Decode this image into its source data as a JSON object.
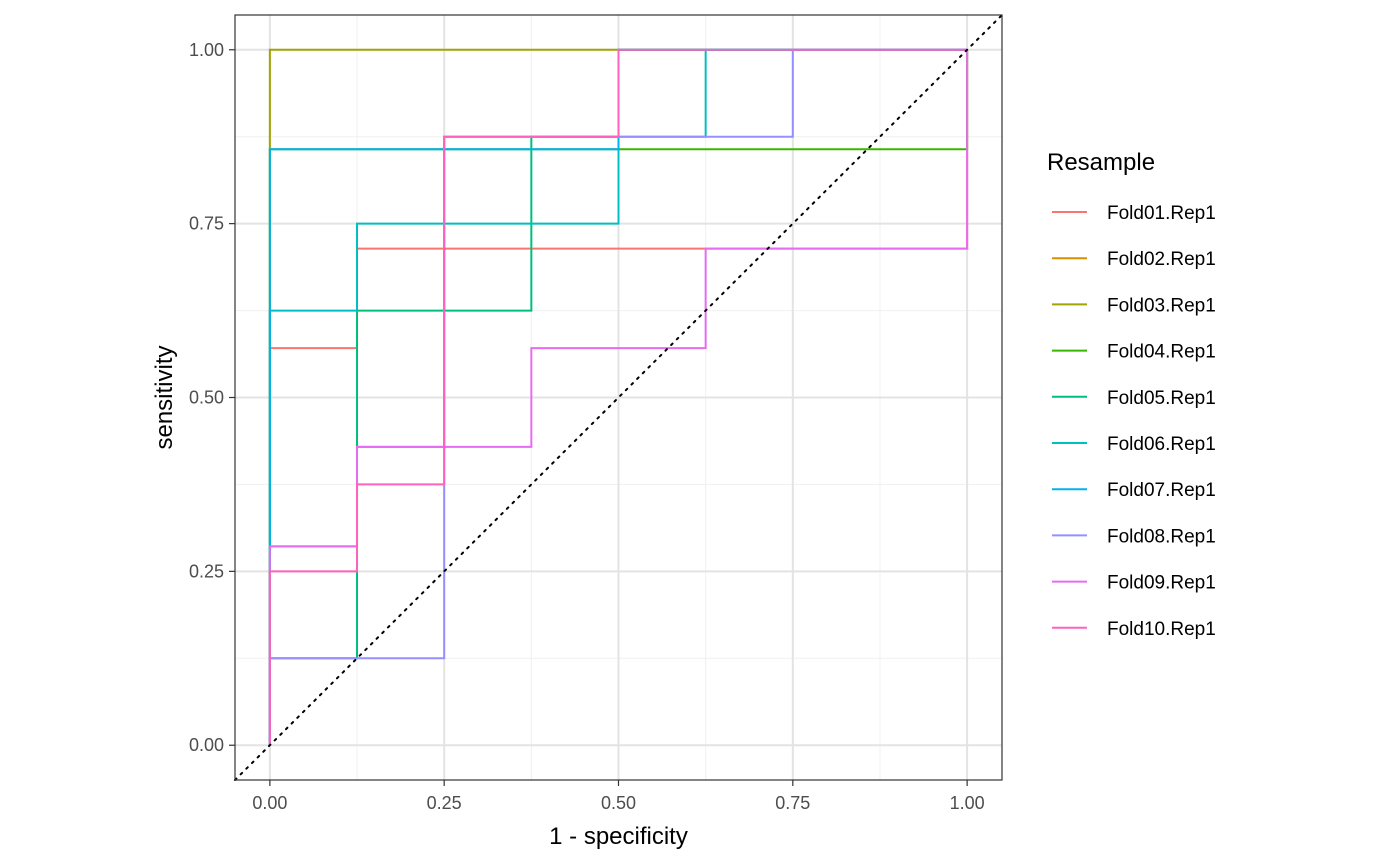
{
  "chart_data": {
    "type": "line",
    "subtype": "step-roc",
    "title": "",
    "xlabel": "1 - specificity",
    "ylabel": "sensitivity",
    "xlim": [
      -0.05,
      1.05
    ],
    "ylim": [
      -0.05,
      1.05
    ],
    "x_ticks": [
      0.0,
      0.25,
      0.5,
      0.75,
      1.0
    ],
    "y_ticks": [
      0.0,
      0.25,
      0.5,
      0.75,
      1.0
    ],
    "x_tick_labels": [
      "0.00",
      "0.25",
      "0.50",
      "0.75",
      "1.00"
    ],
    "y_tick_labels": [
      "0.00",
      "0.25",
      "0.50",
      "0.75",
      "1.00"
    ],
    "grid": true,
    "reference_line": {
      "style": "dotted",
      "color": "#000000",
      "x": [
        -0.05,
        1.05
      ],
      "y": [
        -0.05,
        1.05
      ]
    },
    "legend": {
      "title": "Resample",
      "position": "right"
    },
    "series": [
      {
        "name": "Fold01.Rep1",
        "color": "#F8766D",
        "x": [
          0,
          0,
          0.125,
          0.125,
          0.25,
          0.5,
          1,
          1
        ],
        "y": [
          0,
          0.571,
          0.571,
          0.714,
          0.714,
          0.714,
          0.714,
          1
        ]
      },
      {
        "name": "Fold02.Rep1",
        "color": "#D89000",
        "x": [
          0,
          0,
          0.125,
          0.125,
          0.25,
          0.25,
          0.5,
          0.5,
          1
        ],
        "y": [
          0,
          0.286,
          0.286,
          0.429,
          0.429,
          0.875,
          0.875,
          1,
          1
        ]
      },
      {
        "name": "Fold03.Rep1",
        "color": "#A3A500",
        "x": [
          0,
          0,
          1
        ],
        "y": [
          0,
          1,
          1
        ]
      },
      {
        "name": "Fold04.Rep1",
        "color": "#39B600",
        "x": [
          0,
          0,
          1,
          1
        ],
        "y": [
          0,
          0.857,
          0.857,
          1
        ]
      },
      {
        "name": "Fold05.Rep1",
        "color": "#00BF7D",
        "x": [
          0,
          0,
          0.125,
          0.125,
          0.375,
          0.375,
          0.5,
          0.5,
          1
        ],
        "y": [
          0,
          0.125,
          0.125,
          0.625,
          0.625,
          0.875,
          0.875,
          1,
          1
        ]
      },
      {
        "name": "Fold06.Rep1",
        "color": "#00BFC4",
        "x": [
          0,
          0,
          0.125,
          0.125,
          0.5,
          0.5,
          0.625,
          0.625,
          1
        ],
        "y": [
          0,
          0.625,
          0.625,
          0.75,
          0.75,
          0.875,
          0.875,
          1,
          1
        ]
      },
      {
        "name": "Fold07.Rep1",
        "color": "#00B0F6",
        "x": [
          0,
          0,
          0.5,
          0.5,
          1
        ],
        "y": [
          0,
          0.857,
          0.857,
          1,
          1
        ]
      },
      {
        "name": "Fold08.Rep1",
        "color": "#9590FF",
        "x": [
          0,
          0,
          0.25,
          0.25,
          0.75,
          0.75,
          1
        ],
        "y": [
          0,
          0.125,
          0.125,
          0.875,
          0.875,
          1,
          1
        ]
      },
      {
        "name": "Fold09.Rep1",
        "color": "#E76BF3",
        "x": [
          0,
          0,
          0.125,
          0.125,
          0.375,
          0.375,
          0.625,
          0.625,
          1,
          1
        ],
        "y": [
          0,
          0.286,
          0.286,
          0.429,
          0.429,
          0.571,
          0.571,
          0.714,
          0.714,
          1
        ]
      },
      {
        "name": "Fold10.Rep1",
        "color": "#FF62BC",
        "x": [
          0,
          0,
          0.125,
          0.125,
          0.25,
          0.25,
          0.5,
          0.5,
          1
        ],
        "y": [
          0,
          0.25,
          0.25,
          0.375,
          0.375,
          0.875,
          0.875,
          1,
          1
        ]
      }
    ]
  }
}
